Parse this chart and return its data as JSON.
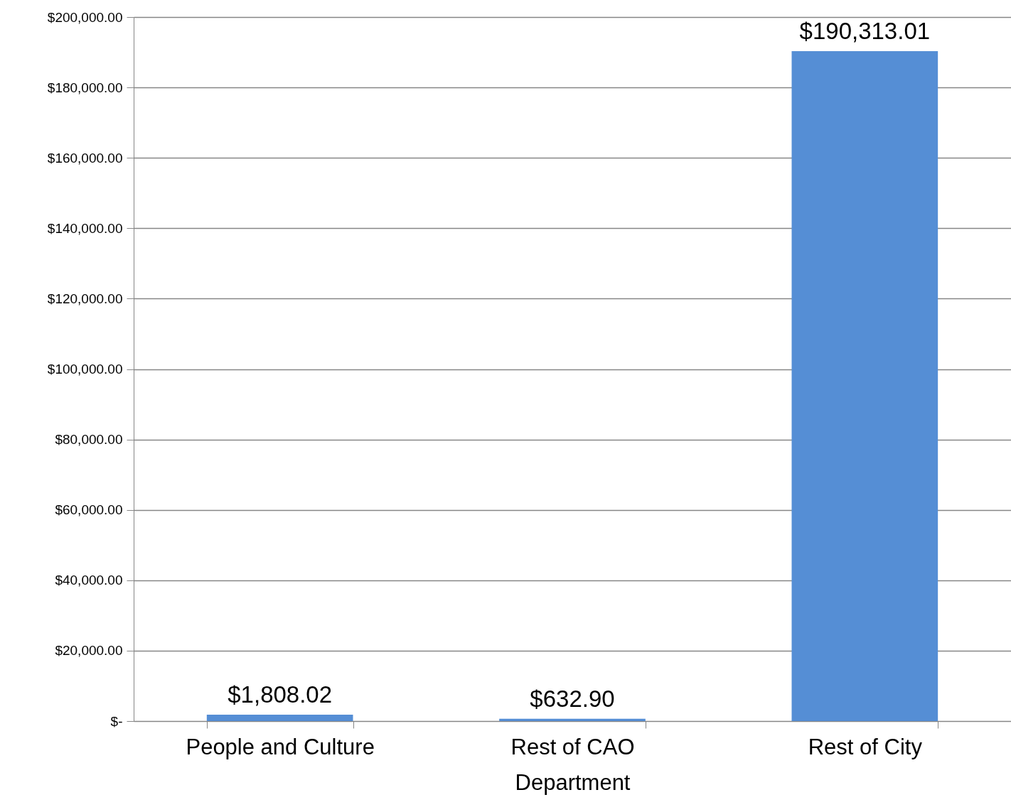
{
  "chart_data": {
    "type": "bar",
    "categories": [
      "People and Culture",
      "Rest of CAO Department",
      "Rest of City"
    ],
    "values": [
      1808.02,
      632.9,
      190313.01
    ],
    "value_labels": [
      "$1,808.02",
      "$632.90",
      "$190,313.01"
    ],
    "color": "#558ed5",
    "ylim": [
      0,
      200000
    ],
    "yticks": [
      {
        "value": 0,
        "label": "$-"
      },
      {
        "value": 20000,
        "label": "$20,000.00"
      },
      {
        "value": 40000,
        "label": "$40,000.00"
      },
      {
        "value": 60000,
        "label": "$60,000.00"
      },
      {
        "value": 80000,
        "label": "$80,000.00"
      },
      {
        "value": 100000,
        "label": "$100,000.00"
      },
      {
        "value": 120000,
        "label": "$120,000.00"
      },
      {
        "value": 140000,
        "label": "$140,000.00"
      },
      {
        "value": 160000,
        "label": "$160,000.00"
      },
      {
        "value": 180000,
        "label": "$180,000.00"
      },
      {
        "value": 200000,
        "label": "$200,000.00"
      }
    ],
    "grid": "y"
  }
}
